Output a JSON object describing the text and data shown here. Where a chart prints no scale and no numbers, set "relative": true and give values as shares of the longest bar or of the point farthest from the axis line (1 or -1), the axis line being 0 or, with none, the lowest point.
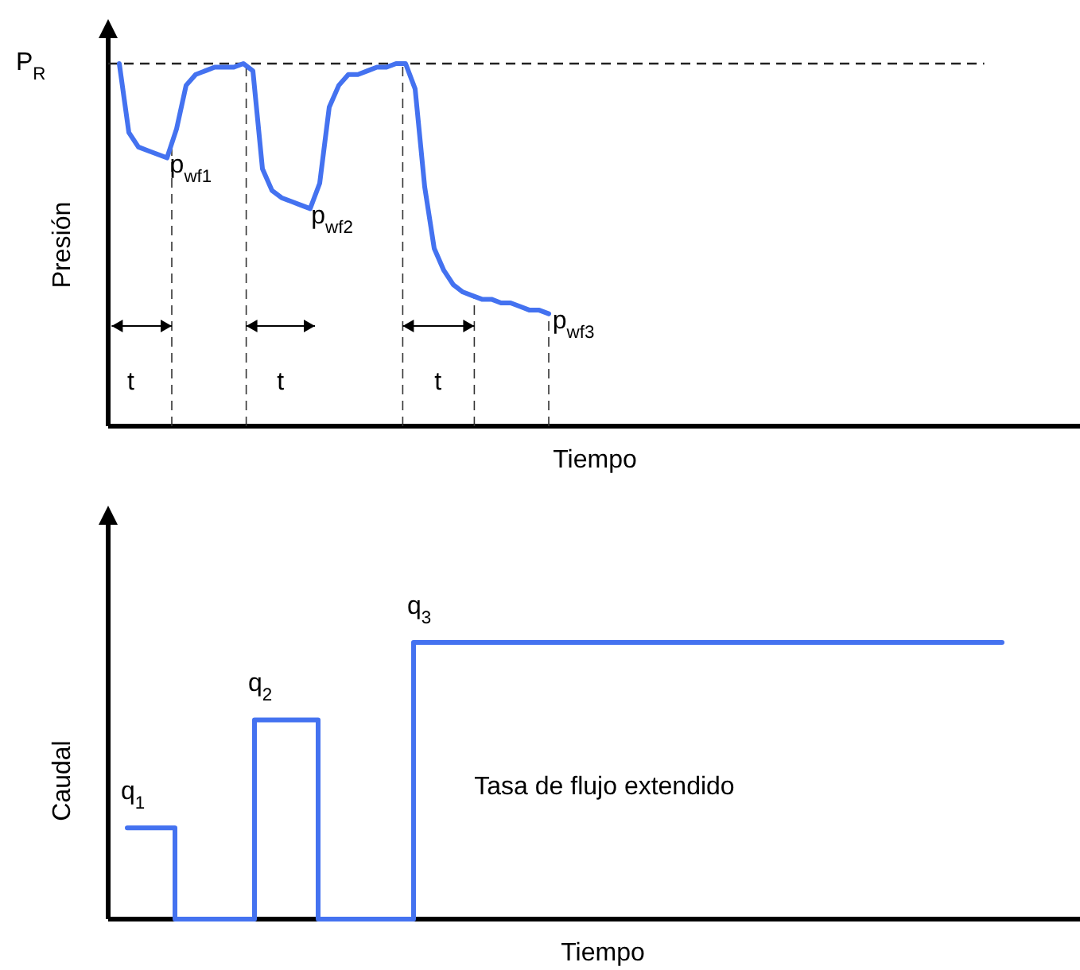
{
  "chart_data": [
    {
      "type": "line",
      "relative": true,
      "xlabel": "Tiempo",
      "ylabel": "Presión",
      "line_style": "solid",
      "categories": [
        null,
        null,
        null,
        null,
        null,
        null,
        null,
        null,
        null,
        null,
        null,
        null,
        null,
        null,
        null,
        null,
        null,
        null,
        null,
        null,
        null,
        null,
        null,
        null,
        null,
        null,
        null,
        null,
        null,
        null,
        null,
        null,
        null,
        null,
        null,
        null,
        null,
        null,
        null,
        null,
        null,
        null,
        null,
        null,
        null,
        null
      ],
      "series": [
        {
          "color": "#4472f0",
          "values": [
            1,
            0.81,
            0.77,
            0.76,
            0.75,
            0.74,
            0.82,
            0.94,
            0.97,
            0.98,
            0.99,
            0.99,
            0.99,
            1,
            0.98,
            0.71,
            0.65,
            0.63,
            0.62,
            0.61,
            0.6,
            0.67,
            0.88,
            0.94,
            0.97,
            0.97,
            0.98,
            0.99,
            0.99,
            1,
            1,
            0.93,
            0.66,
            0.49,
            0.43,
            0.39,
            0.37,
            0.36,
            0.35,
            0.35,
            0.34,
            0.34,
            0.33,
            0.32,
            0.32,
            0.31
          ]
        }
      ],
      "ref_lines": [
        {
          "axis": "y",
          "value": 1,
          "label": "P$_{R}$",
          "line_style": "dashed"
        }
      ],
      "annotations": [
        "t",
        "t",
        "t",
        "p$_{wf1}$",
        "p$_{wf2}$",
        "p$_{wf3}$"
      ]
    },
    {
      "type": "step",
      "relative": true,
      "xlabel": "Tiempo",
      "ylabel": "Caudal",
      "line_style": "solid",
      "categories": [
        null,
        null,
        null,
        null,
        null,
        null,
        null,
        null,
        null,
        null,
        null,
        null,
        null,
        null,
        null,
        null,
        null,
        null,
        null,
        null,
        null,
        null,
        null,
        null,
        null,
        null,
        null,
        null,
        null,
        null,
        null,
        null,
        null,
        null,
        null,
        null,
        null,
        null,
        null,
        null,
        null,
        null,
        null,
        null,
        null,
        null,
        null,
        null,
        null,
        null,
        null,
        null,
        null,
        null,
        null,
        null
      ],
      "series": [
        {
          "color": "#4472f0",
          "values": [
            0.33,
            0.33,
            0.33,
            0,
            0,
            0,
            0,
            0,
            0.72,
            0.72,
            0.72,
            0.72,
            0,
            0,
            0,
            0,
            0,
            0,
            1,
            1,
            1,
            1,
            1,
            1,
            1,
            1,
            1,
            1,
            1,
            1,
            1,
            1,
            1,
            1,
            1,
            1,
            1,
            1,
            1,
            1,
            1,
            1,
            1,
            1,
            1,
            1,
            1,
            1,
            1,
            1,
            1,
            1,
            1,
            1,
            1,
            1
          ]
        }
      ],
      "annotations": [
        {
          "text": "q$_{1}$",
          "y": 0.33
        },
        {
          "text": "q$_{2}$",
          "y": 0.72
        },
        {
          "text": "q$_{3}$",
          "y": 1
        },
        "Tasa de flujo extendido"
      ]
    }
  ]
}
